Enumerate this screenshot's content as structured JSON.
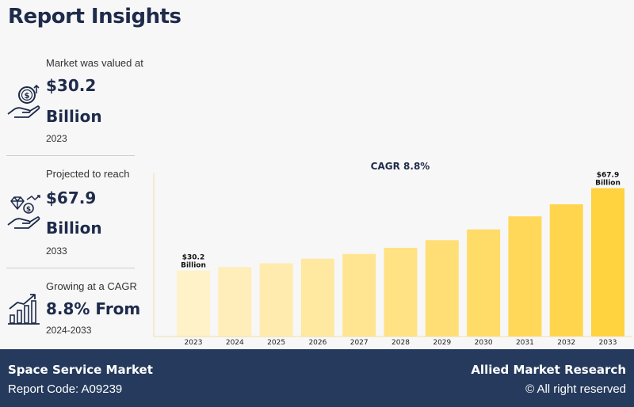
{
  "header": {
    "title": "Report Insights"
  },
  "stats": [
    {
      "label": "Market was valued at",
      "value": "$30.2",
      "unit": "Billion",
      "year": "2023",
      "icon": "money-hand-icon"
    },
    {
      "label": "Projected to reach",
      "value": "$67.9",
      "unit": "Billion",
      "year": "2033",
      "icon": "diamond-hand-icon"
    },
    {
      "label": "Growing at a CAGR",
      "value": "8.8% From",
      "year": "2024-2033",
      "icon": "growth-chart-icon"
    }
  ],
  "colors": {
    "navy": "#253a5c",
    "bar_light": "#fff1c8",
    "bar_dark": "#ffd23f"
  },
  "chart_data": {
    "type": "bar",
    "title": "CAGR 8.8%",
    "categories": [
      "2023",
      "2024",
      "2025",
      "2026",
      "2027",
      "2028",
      "2029",
      "2030",
      "2031",
      "2032",
      "2033"
    ],
    "values": [
      30.2,
      31.8,
      33.5,
      35.6,
      37.8,
      40.6,
      44.1,
      49.0,
      55.0,
      60.5,
      67.9
    ],
    "annotations": [
      {
        "category": "2023",
        "line1": "$30.2",
        "line2": "Billion"
      },
      {
        "category": "2033",
        "line1": "$67.9",
        "line2": "Billion"
      }
    ],
    "ylim": [
      0,
      75
    ]
  },
  "footer": {
    "market": "Space Service Market",
    "report_code": "Report Code: A09239",
    "company": "Allied Market Research",
    "rights": "© All right reserved"
  }
}
